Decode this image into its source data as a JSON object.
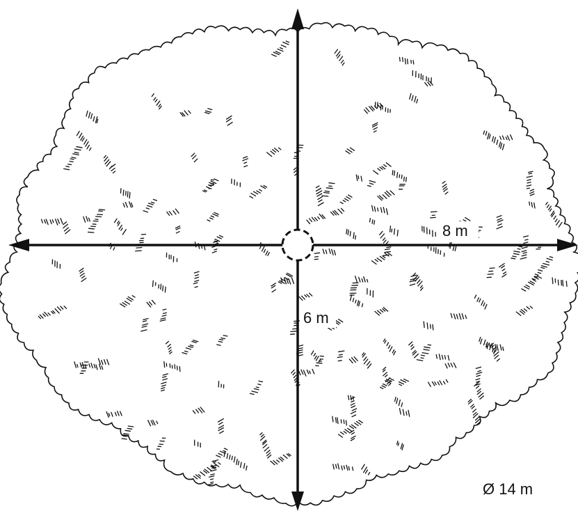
{
  "dimensions": {
    "horizontal_radius": "8 m",
    "vertical_radius": "6 m",
    "diameter": "Ø 14 m"
  }
}
